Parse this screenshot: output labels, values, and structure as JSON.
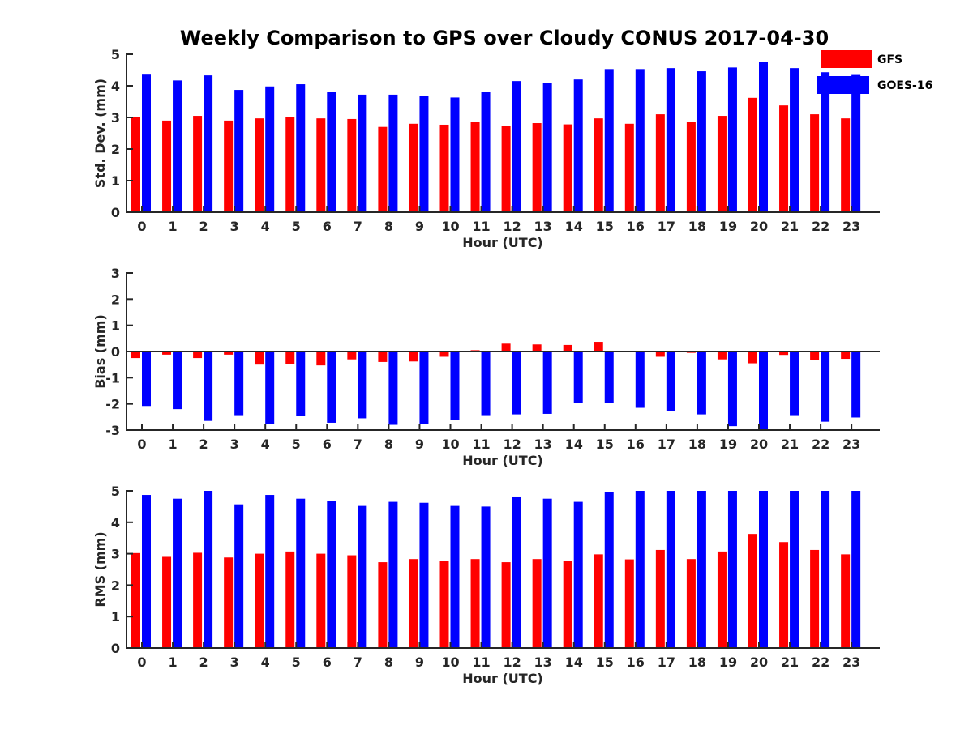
{
  "figure_title": "Weekly Comparison to GPS over Cloudy CONUS 2017-04-30",
  "legend": [
    {
      "label": "GFS",
      "color": "#ff0000"
    },
    {
      "label": "GOES-16",
      "color": "#0000ff"
    }
  ],
  "chart_data": [
    {
      "type": "bar",
      "xlabel": "Hour (UTC)",
      "ylabel": "Std. Dev. (mm)",
      "ylim": [
        0,
        5
      ],
      "yticks": [
        0,
        1,
        2,
        3,
        4,
        5
      ],
      "categories": [
        "0",
        "1",
        "2",
        "3",
        "4",
        "5",
        "6",
        "7",
        "8",
        "9",
        "10",
        "11",
        "12",
        "13",
        "14",
        "15",
        "16",
        "17",
        "18",
        "19",
        "20",
        "21",
        "22",
        "23"
      ],
      "series": [
        {
          "name": "GFS",
          "color": "#ff0000",
          "values": [
            3.0,
            2.9,
            3.05,
            2.9,
            2.97,
            3.02,
            2.97,
            2.95,
            2.7,
            2.8,
            2.77,
            2.85,
            2.72,
            2.82,
            2.78,
            2.97,
            2.8,
            3.1,
            2.85,
            3.05,
            3.62,
            3.38,
            3.1,
            2.97
          ]
        },
        {
          "name": "GOES-16",
          "color": "#0000ff",
          "values": [
            4.38,
            4.17,
            4.33,
            3.87,
            3.98,
            4.05,
            3.82,
            3.72,
            3.72,
            3.68,
            3.63,
            3.8,
            4.15,
            4.1,
            4.2,
            4.53,
            4.53,
            4.56,
            4.46,
            4.58,
            4.76,
            4.56,
            4.43,
            4.37
          ]
        }
      ]
    },
    {
      "type": "bar",
      "xlabel": "Hour (UTC)",
      "ylabel": "Bias (mm)",
      "ylim": [
        -3,
        3
      ],
      "yticks": [
        -3,
        -2,
        -1,
        0,
        1,
        2,
        3
      ],
      "categories": [
        "0",
        "1",
        "2",
        "3",
        "4",
        "5",
        "6",
        "7",
        "8",
        "9",
        "10",
        "11",
        "12",
        "13",
        "14",
        "15",
        "16",
        "17",
        "18",
        "19",
        "20",
        "21",
        "22",
        "23"
      ],
      "series": [
        {
          "name": "GFS",
          "color": "#ff0000",
          "values": [
            -0.25,
            -0.12,
            -0.25,
            -0.12,
            -0.5,
            -0.47,
            -0.53,
            -0.3,
            -0.4,
            -0.38,
            -0.2,
            0.05,
            0.3,
            0.27,
            0.25,
            0.37,
            -0.02,
            -0.2,
            -0.05,
            -0.3,
            -0.45,
            -0.13,
            -0.32,
            -0.28
          ]
        },
        {
          "name": "GOES-16",
          "color": "#0000ff",
          "values": [
            -2.08,
            -2.2,
            -2.65,
            -2.43,
            -2.77,
            -2.45,
            -2.72,
            -2.55,
            -2.8,
            -2.77,
            -2.62,
            -2.43,
            -2.4,
            -2.38,
            -1.97,
            -1.97,
            -2.15,
            -2.28,
            -2.4,
            -2.85,
            -2.98,
            -2.43,
            -2.68,
            -2.52
          ]
        }
      ]
    },
    {
      "type": "bar",
      "xlabel": "Hour (UTC)",
      "ylabel": "RMS (mm)",
      "ylim": [
        0,
        5
      ],
      "yticks": [
        0,
        1,
        2,
        3,
        4,
        5
      ],
      "categories": [
        "0",
        "1",
        "2",
        "3",
        "4",
        "5",
        "6",
        "7",
        "8",
        "9",
        "10",
        "11",
        "12",
        "13",
        "14",
        "15",
        "16",
        "17",
        "18",
        "19",
        "20",
        "21",
        "22",
        "23"
      ],
      "series": [
        {
          "name": "GFS",
          "color": "#ff0000",
          "values": [
            3.02,
            2.9,
            3.03,
            2.88,
            3.0,
            3.07,
            3.0,
            2.95,
            2.73,
            2.83,
            2.78,
            2.83,
            2.73,
            2.83,
            2.78,
            2.98,
            2.82,
            3.12,
            2.83,
            3.07,
            3.63,
            3.37,
            3.12,
            2.98
          ]
        },
        {
          "name": "GOES-16",
          "color": "#0000ff",
          "values": [
            4.87,
            4.75,
            5.0,
            4.57,
            4.87,
            4.75,
            4.68,
            4.52,
            4.65,
            4.62,
            4.52,
            4.5,
            4.82,
            4.75,
            4.65,
            4.95,
            5.0,
            5.0,
            5.0,
            5.0,
            5.0,
            5.0,
            5.0,
            5.0
          ]
        }
      ]
    }
  ]
}
